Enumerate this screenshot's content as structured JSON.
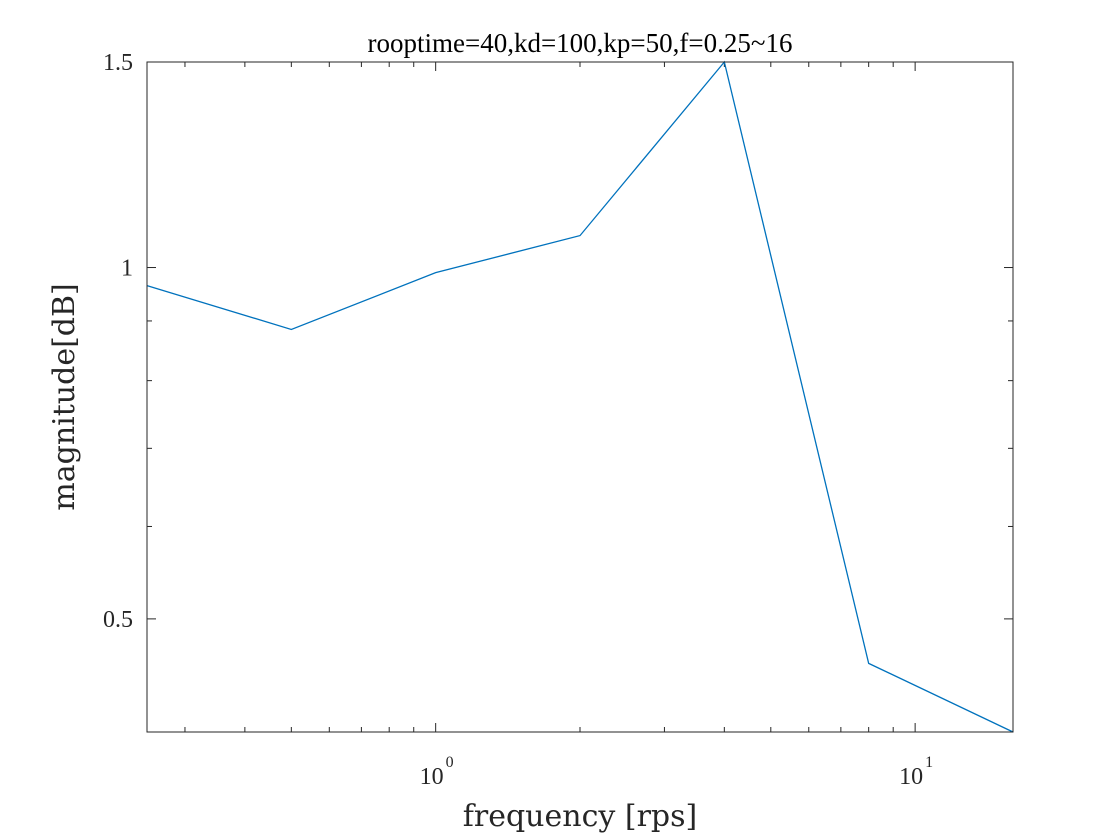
{
  "chart_data": {
    "type": "line",
    "title": "rooptime=40,kd=100,kp=50,f=0.25~16",
    "xlabel": "frequency [rps]",
    "ylabel": "magnitude[dB]",
    "xscale": "log",
    "yscale": "log",
    "xlim": [
      0.25,
      16
    ],
    "ylim": [
      0.4,
      1.5
    ],
    "grid": false,
    "x_ticks": [
      {
        "base": "10",
        "exp": "0",
        "value": 1
      },
      {
        "base": "10",
        "exp": "1",
        "value": 10
      }
    ],
    "y_ticks": [
      {
        "label": "0.5",
        "value": 0.5
      },
      {
        "label": "1",
        "value": 1
      },
      {
        "label": "1.5",
        "value": 1.5
      }
    ],
    "series": [
      {
        "color": "#0072BD",
        "x": [
          0.25,
          0.5,
          1,
          2,
          4,
          8,
          16
        ],
        "y": [
          0.965,
          0.885,
          0.99,
          1.065,
          1.5,
          0.458,
          0.4
        ]
      }
    ]
  }
}
